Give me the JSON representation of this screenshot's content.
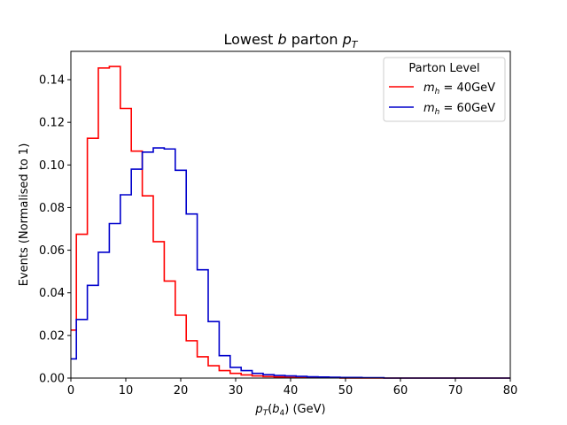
{
  "chart_data": {
    "type": "line",
    "title_parts": [
      "Lowest ",
      "b",
      " parton ",
      "p",
      "T"
    ],
    "xlabel_parts": [
      "p",
      "T",
      "(",
      "b",
      "4",
      ") (GeV)"
    ],
    "ylabel": "Events (Normalised to 1)",
    "xlim": [
      0,
      80
    ],
    "ylim": [
      0,
      0.1533
    ],
    "x_ticks": [
      0,
      10,
      20,
      30,
      40,
      50,
      60,
      70,
      80
    ],
    "x_tick_labels": [
      "0",
      "10",
      "20",
      "30",
      "40",
      "50",
      "60",
      "70",
      "80"
    ],
    "y_ticks": [
      0.0,
      0.02,
      0.04,
      0.06,
      0.08,
      0.1,
      0.12,
      0.14
    ],
    "y_tick_labels": [
      "0.00",
      "0.02",
      "0.04",
      "0.06",
      "0.08",
      "0.10",
      "0.12",
      "0.14"
    ],
    "grid": false,
    "legend": {
      "title": "Parton Level",
      "placement": "top-right",
      "entries": [
        {
          "name_parts": [
            "m",
            "h",
            " = 40GeV"
          ],
          "color": "#ff0000"
        },
        {
          "name_parts": [
            "m",
            "h",
            " = 60GeV"
          ],
          "color": "#0000cc"
        }
      ]
    },
    "bin_edges": [
      0,
      1,
      3,
      5,
      7,
      9,
      11,
      13,
      15,
      17,
      19,
      21,
      23,
      25,
      27,
      29,
      31,
      33,
      35,
      37,
      39,
      41,
      43,
      45,
      47,
      49,
      51,
      53,
      55,
      57,
      59,
      61,
      63,
      65,
      67,
      69,
      71,
      73,
      75,
      77,
      79,
      80
    ],
    "series": [
      {
        "name_parts": [
          "m",
          "h",
          " = 40GeV"
        ],
        "color": "#ff0000",
        "values": [
          0.0225,
          0.0675,
          0.1125,
          0.1455,
          0.1462,
          0.1265,
          0.1065,
          0.0855,
          0.064,
          0.0455,
          0.0295,
          0.0175,
          0.01,
          0.0058,
          0.0035,
          0.0022,
          0.0015,
          0.001,
          0.0007,
          0.0005,
          0.0003,
          0.0002,
          0.0002,
          0.0001,
          0.0001,
          0,
          0,
          0,
          0,
          0,
          0,
          0,
          0,
          0,
          0,
          0,
          0,
          0,
          0,
          0,
          0
        ]
      },
      {
        "name_parts": [
          "m",
          "h",
          " = 60GeV"
        ],
        "color": "#0000cc",
        "values": [
          0.009,
          0.0275,
          0.0435,
          0.059,
          0.0725,
          0.086,
          0.098,
          0.106,
          0.108,
          0.1075,
          0.0975,
          0.077,
          0.0508,
          0.0265,
          0.0105,
          0.005,
          0.0035,
          0.0022,
          0.0016,
          0.0012,
          0.001,
          0.0008,
          0.0006,
          0.0005,
          0.0004,
          0.0003,
          0.0003,
          0.0002,
          0.0002,
          0,
          0,
          0,
          0,
          0,
          0,
          0,
          0,
          0,
          0,
          0,
          0
        ]
      }
    ]
  }
}
